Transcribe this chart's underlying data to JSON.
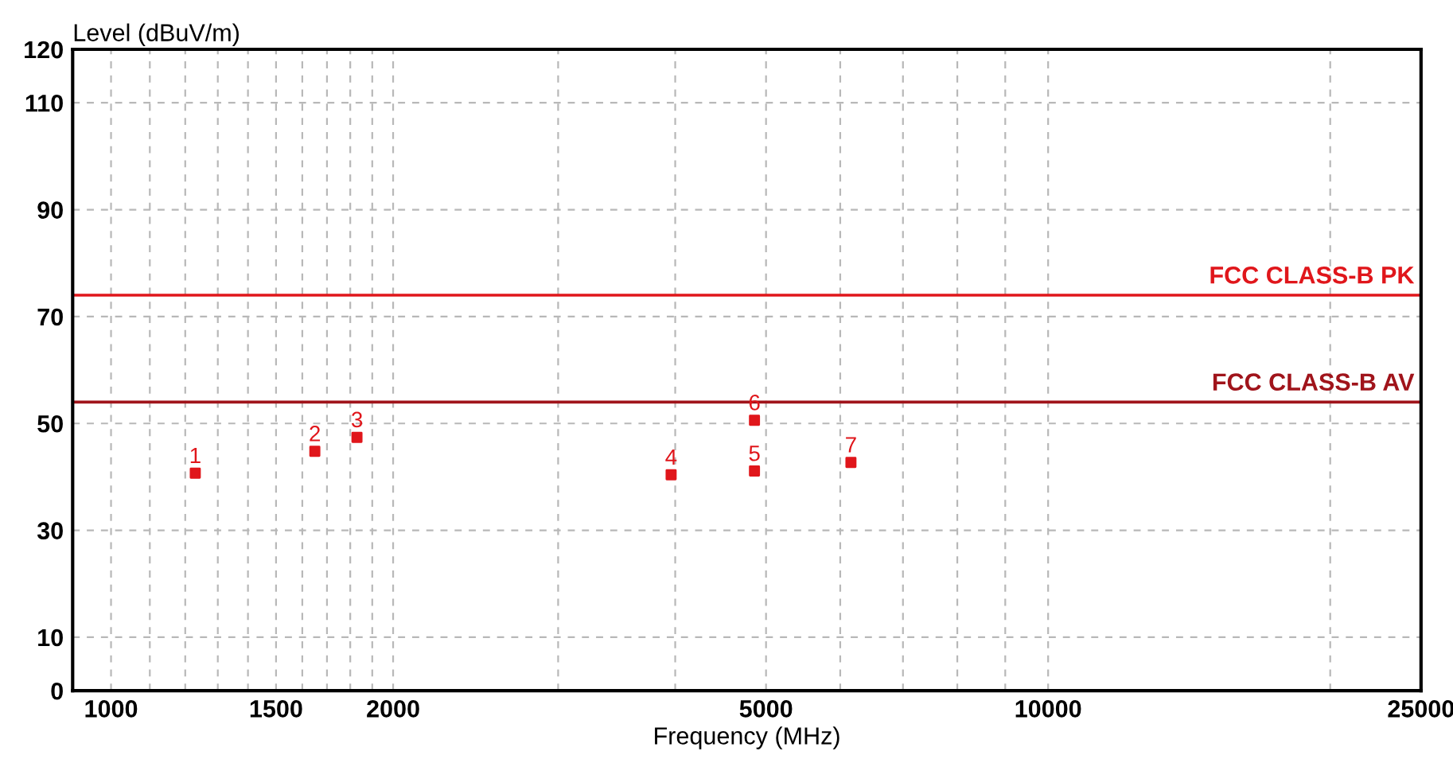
{
  "chart_data": {
    "type": "scatter",
    "xlabel": "Frequency (MHz)",
    "ylabel": "Level (dBuV/m)",
    "log": "x",
    "xlim": [
      910,
      25000
    ],
    "ylim": [
      0,
      120
    ],
    "xticks": [
      1000,
      {
        "value": 1100,
        "label": null
      },
      {
        "value": 1200,
        "label": null
      },
      {
        "value": 1300,
        "label": null
      },
      {
        "value": 1400,
        "label": null
      },
      1500,
      {
        "value": 1600,
        "label": null
      },
      {
        "value": 1700,
        "label": null
      },
      {
        "value": 1800,
        "label": null
      },
      {
        "value": 1900,
        "label": null
      },
      2000,
      {
        "value": 3000,
        "label": null
      },
      {
        "value": 4000,
        "label": null
      },
      5000,
      {
        "value": 6000,
        "label": null
      },
      {
        "value": 7000,
        "label": null
      },
      {
        "value": 8000,
        "label": null
      },
      {
        "value": 9000,
        "label": null
      },
      10000,
      {
        "value": 20000,
        "label": null
      },
      25000
    ],
    "yticks": [
      0,
      10,
      30,
      50,
      70,
      90,
      110,
      120
    ],
    "grid": true,
    "marker": "square",
    "series": [
      {
        "color": "#e0161b",
        "x": [
          1230,
          1650,
          1830,
          3960,
          4860,
          4860,
          6160
        ],
        "values": [
          40.7,
          44.8,
          47.4,
          40.4,
          41.1,
          50.6,
          42.7
        ]
      }
    ],
    "annotations": [
      {
        "text": "1",
        "x": 1230,
        "y": 40.7
      },
      {
        "text": "2",
        "x": 1650,
        "y": 44.8
      },
      {
        "text": "3",
        "x": 1830,
        "y": 47.4
      },
      {
        "text": "4",
        "x": 3960,
        "y": 40.4
      },
      {
        "text": "5",
        "x": 4860,
        "y": 41.1
      },
      {
        "text": "6",
        "x": 4860,
        "y": 50.6
      },
      {
        "text": "7",
        "x": 6160,
        "y": 42.7
      }
    ],
    "ref_lines": [
      {
        "axis": "y",
        "value": 74,
        "label": "FCC CLASS-B PK",
        "color": "#e0161b"
      },
      {
        "axis": "y",
        "value": 54,
        "label": "FCC CLASS-B AV",
        "color": "#a0141b"
      }
    ]
  }
}
